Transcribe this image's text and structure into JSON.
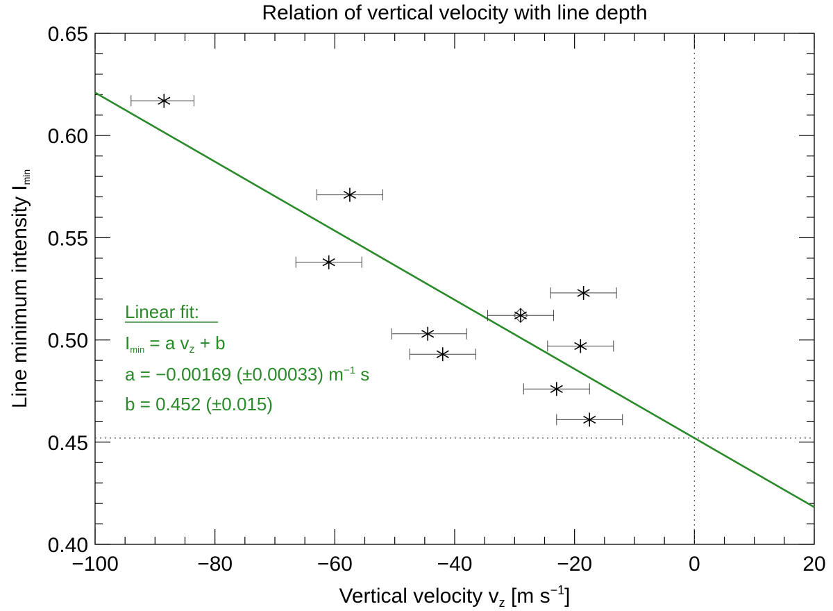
{
  "chart_data": {
    "type": "scatter",
    "title": "Relation of vertical velocity with line depth",
    "xlabel": "Vertical velocity v",
    "xlabel_sub": "z",
    "xlabel_units_open": " [m s",
    "xlabel_units_sup": "−1",
    "xlabel_units_close": "]",
    "ylabel": "Line minimum intensity  I",
    "ylabel_sub": "min",
    "xlim": [
      -100,
      20
    ],
    "ylim": [
      0.4,
      0.65
    ],
    "xticks": [
      -100,
      -80,
      -60,
      -40,
      -20,
      0,
      20
    ],
    "xtick_labels": [
      "−100",
      "−80",
      "−60",
      "−40",
      "−20",
      "0",
      "20"
    ],
    "yticks": [
      0.4,
      0.45,
      0.5,
      0.55,
      0.6,
      0.65
    ],
    "ytick_labels": [
      "0.40",
      "0.45",
      "0.50",
      "0.55",
      "0.60",
      "0.65"
    ],
    "x_minor_step": 5,
    "y_minor_step": 0.01,
    "points": [
      {
        "x": -88.5,
        "y": 0.617,
        "xerr_low": -94.0,
        "xerr_high": -83.5
      },
      {
        "x": -57.5,
        "y": 0.571,
        "xerr_low": -63.0,
        "xerr_high": -52.0
      },
      {
        "x": -61.0,
        "y": 0.538,
        "xerr_low": -66.5,
        "xerr_high": -55.5
      },
      {
        "x": -29.0,
        "y": 0.512,
        "xerr_low": -34.5,
        "xerr_high": -23.5
      },
      {
        "x": -44.5,
        "y": 0.503,
        "xerr_low": -50.5,
        "xerr_high": -38.0
      },
      {
        "x": -42.0,
        "y": 0.493,
        "xerr_low": -47.5,
        "xerr_high": -36.5
      },
      {
        "x": -18.5,
        "y": 0.523,
        "xerr_low": -24.0,
        "xerr_high": -13.0
      },
      {
        "x": -19.0,
        "y": 0.497,
        "xerr_low": -24.5,
        "xerr_high": -13.5
      },
      {
        "x": -23.0,
        "y": 0.476,
        "xerr_low": -28.5,
        "xerr_high": -17.5
      },
      {
        "x": -17.5,
        "y": 0.461,
        "xerr_low": -23.0,
        "xerr_high": -12.0
      }
    ],
    "highlighted_point_index": 3,
    "fit": {
      "slope": -0.00169,
      "intercept": 0.452,
      "color": "#2a8a2a",
      "heading": "Linear fit:",
      "eq_I": "I",
      "eq_I_sub": "min",
      "eq_mid": " = a v",
      "eq_v_sub": "z",
      "eq_tail": " + b",
      "a_line": "a = −0.00169 (±0.00033) m",
      "a_sup": "−1",
      "a_tail": " s",
      "b_line": "b = 0.452 (±0.015)"
    },
    "reference_lines": {
      "vertical_x": 0,
      "horizontal_y": 0.452
    }
  }
}
